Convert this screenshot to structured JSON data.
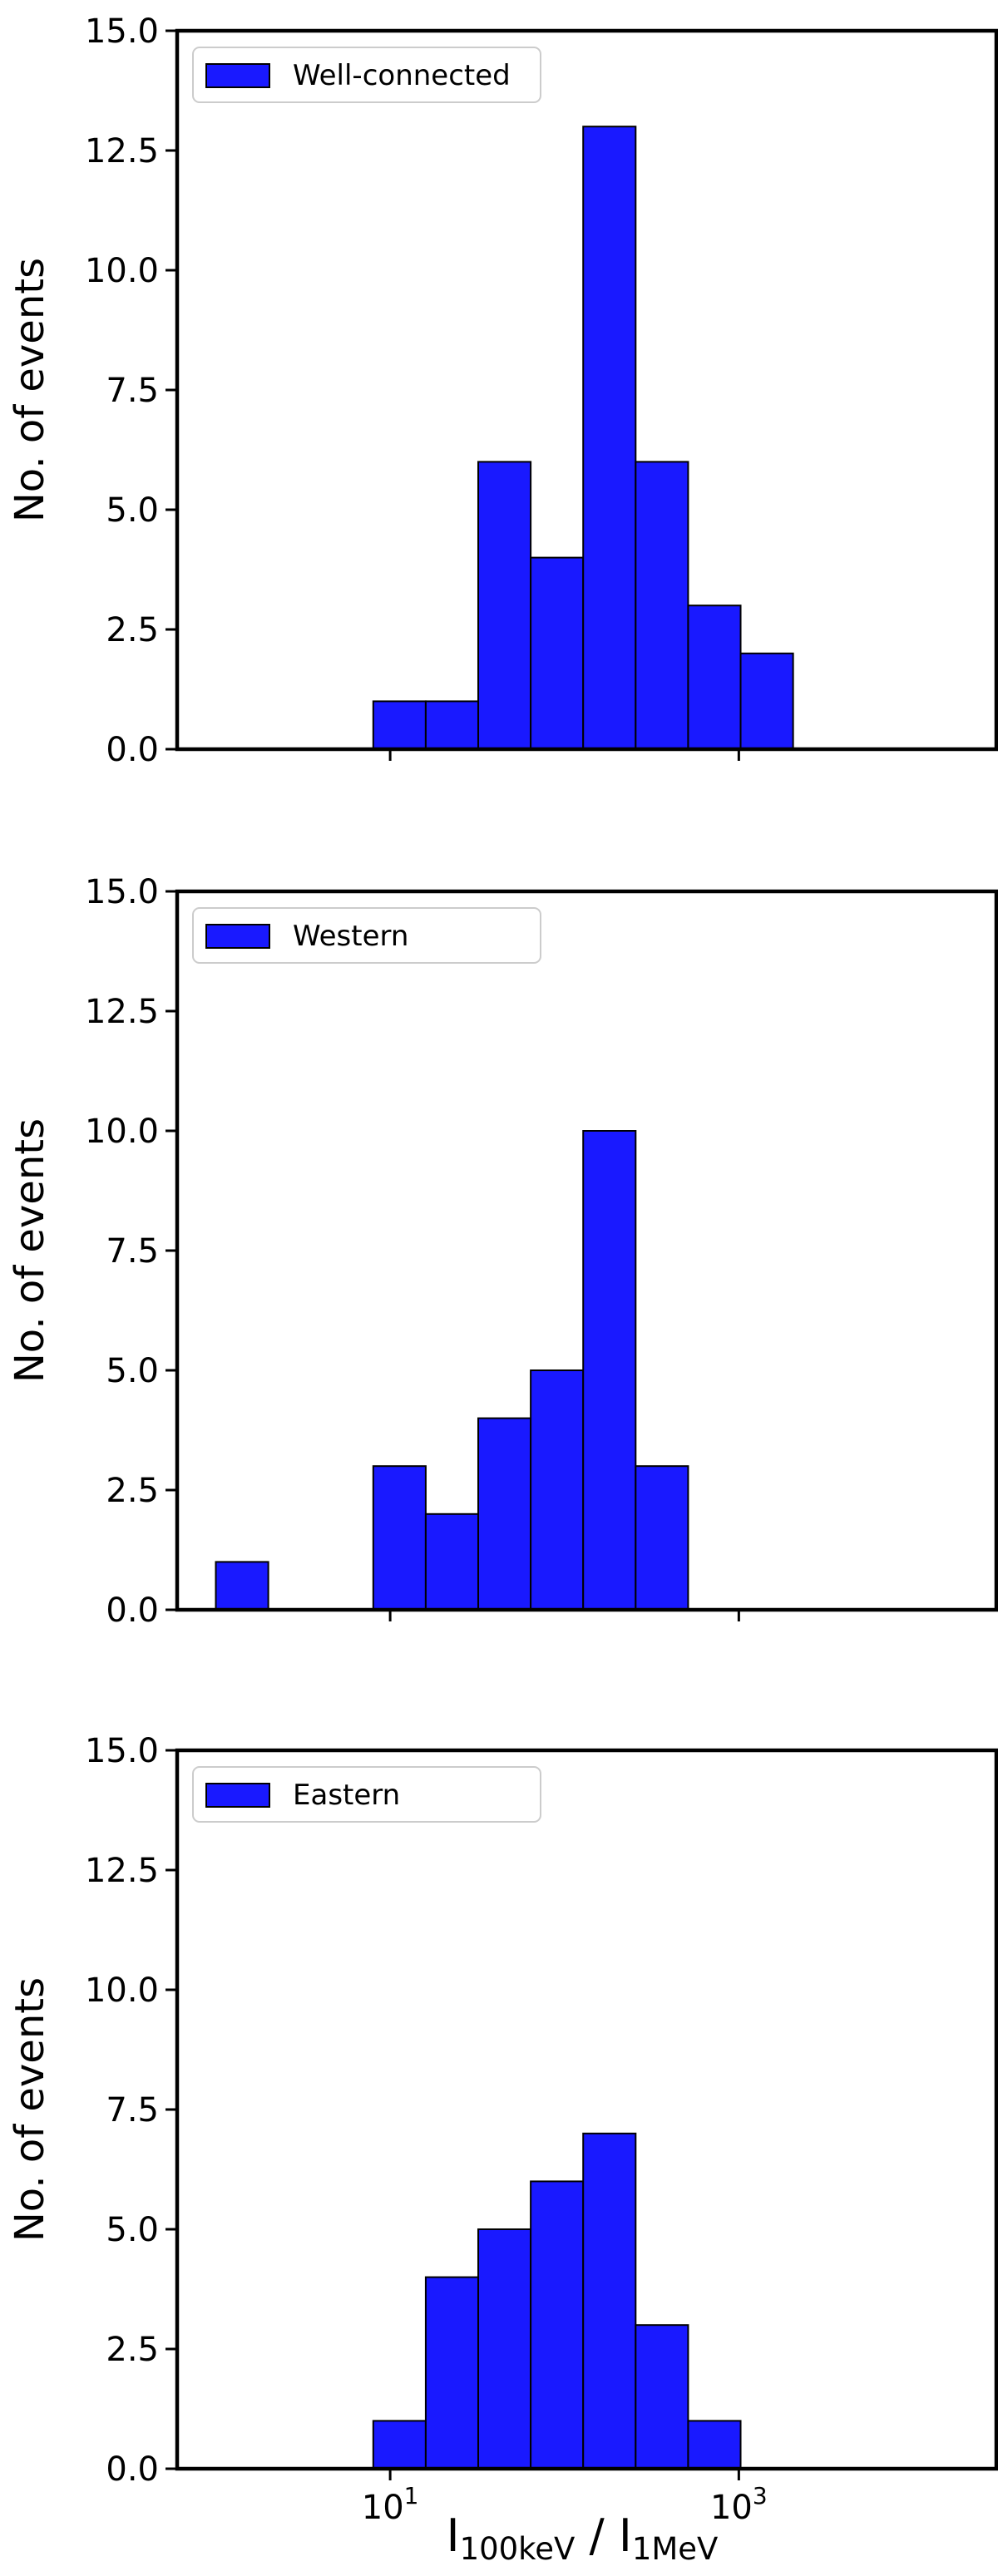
{
  "figure": {
    "xlabel_main": "I",
    "xlabel_sub1": "100keV",
    "xlabel_separator": " / I",
    "xlabel_sub2": "1MeV",
    "xtick_base": "10",
    "xtick_labels": [
      {
        "exponent": "1",
        "value": 10
      },
      {
        "exponent": "3",
        "value": 1000
      }
    ]
  },
  "chart_data": [
    {
      "type": "bar",
      "histogram": true,
      "x_scale": "log",
      "xlim": [
        0.6,
        30000
      ],
      "ylim": [
        0,
        15
      ],
      "yticks": [
        0,
        2.5,
        5,
        7.5,
        10,
        12.5,
        15
      ],
      "ytick_labels": [
        "0.0",
        "2.5",
        "5.0",
        "7.5",
        "10.0",
        "12.5",
        "15.0"
      ],
      "ylabel": "No. of events",
      "legend_position": "top-left",
      "show_xticklabels": false,
      "bin_edges": [
        1,
        2,
        4,
        8,
        16,
        32,
        64,
        128,
        256,
        512,
        1024,
        2048,
        4096,
        8192
      ],
      "series": [
        {
          "name": "Well-connected",
          "color": "#1919ff",
          "values": [
            0,
            0,
            0,
            1,
            1,
            6,
            4,
            13,
            6,
            3,
            2,
            0,
            0
          ]
        }
      ]
    },
    {
      "type": "bar",
      "histogram": true,
      "x_scale": "log",
      "xlim": [
        0.6,
        30000
      ],
      "ylim": [
        0,
        15
      ],
      "yticks": [
        0,
        2.5,
        5,
        7.5,
        10,
        12.5,
        15
      ],
      "ytick_labels": [
        "0.0",
        "2.5",
        "5.0",
        "7.5",
        "10.0",
        "12.5",
        "15.0"
      ],
      "ylabel": "No. of events",
      "legend_position": "top-left",
      "show_xticklabels": false,
      "bin_edges": [
        1,
        2,
        4,
        8,
        16,
        32,
        64,
        128,
        256,
        512,
        1024,
        2048,
        4096,
        8192
      ],
      "series": [
        {
          "name": "Western",
          "color": "#1919ff",
          "values": [
            1,
            0,
            0,
            3,
            2,
            4,
            5,
            10,
            3,
            0,
            0,
            0,
            0
          ]
        }
      ]
    },
    {
      "type": "bar",
      "histogram": true,
      "x_scale": "log",
      "xlim": [
        0.6,
        30000
      ],
      "ylim": [
        0,
        15
      ],
      "yticks": [
        0,
        2.5,
        5,
        7.5,
        10,
        12.5,
        15
      ],
      "ytick_labels": [
        "0.0",
        "2.5",
        "5.0",
        "7.5",
        "10.0",
        "12.5",
        "15.0"
      ],
      "ylabel": "No. of events",
      "legend_position": "top-left",
      "show_xticklabels": true,
      "bin_edges": [
        1,
        2,
        4,
        8,
        16,
        32,
        64,
        128,
        256,
        512,
        1024,
        2048,
        4096,
        8192
      ],
      "series": [
        {
          "name": "Eastern",
          "color": "#1919ff",
          "values": [
            0,
            0,
            0,
            1,
            4,
            5,
            6,
            7,
            3,
            1,
            0,
            0,
            0
          ]
        }
      ]
    }
  ]
}
